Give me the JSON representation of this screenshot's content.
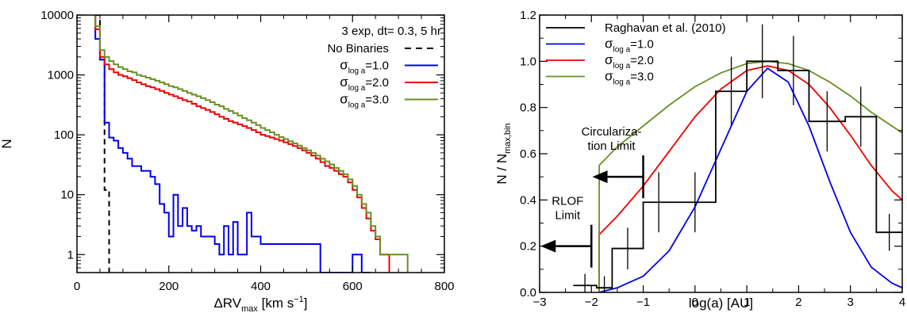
{
  "chart_data": [
    {
      "type": "step",
      "panel": "left",
      "xlabel_main": "ΔRV",
      "xlabel_sub": "max",
      "xlabel_units": " [km s",
      "xlabel_exp": "−1",
      "xlabel_close": "]",
      "ylabel": "N",
      "xlim": [
        0,
        800
      ],
      "ylim": [
        0.5,
        10000
      ],
      "yscale": "log",
      "xticks": [
        0,
        200,
        400,
        600,
        800
      ],
      "xtick_labels": [
        "0",
        "200",
        "400",
        "600",
        "800"
      ],
      "yticks": [
        1,
        10,
        100,
        1000,
        10000
      ],
      "ytick_labels": [
        "1",
        "10",
        "100",
        "1000",
        "10000"
      ],
      "legend_title": "3 exp, dt= 0.3, 5 hr",
      "legend_position": "top-right",
      "bin_width": 10,
      "series": [
        {
          "name": "No Binaries",
          "sigma_sub": "",
          "color": "#000000",
          "dash": true,
          "x_start": 40,
          "values": [
            10000,
            1800,
            12
          ]
        },
        {
          "name": "σ log a =1.0",
          "sigma_sub": "log a",
          "sigma_val": "=1.0",
          "color": "#0000ee",
          "dash": false,
          "x_start": 40,
          "values": [
            4000,
            1800,
            160,
            90,
            80,
            60,
            50,
            40,
            30,
            30,
            25,
            25,
            20,
            15,
            7,
            5,
            2,
            10,
            3,
            6,
            3,
            2.5,
            3,
            2,
            2,
            2,
            1.5,
            1,
            3,
            1,
            3.5,
            1,
            1,
            5,
            2,
            2,
            1.5,
            1.5,
            1.5,
            1.5,
            1.5,
            1.5,
            1.5,
            1.5,
            1.5,
            1.5,
            1.5,
            1.5,
            1.5,
            0.5,
            0.5,
            0.5,
            0.5,
            0.5,
            0.5,
            0.5,
            1,
            1,
            0.5,
            0.5
          ]
        },
        {
          "name": "σ log a =2.0",
          "sigma_sub": "log a",
          "sigma_val": "=2.0",
          "color": "#ee0000",
          "dash": false,
          "x_start": 40,
          "values": [
            5800,
            2000,
            1500,
            1250,
            1100,
            1000,
            950,
            880,
            820,
            750,
            700,
            650,
            620,
            580,
            540,
            500,
            470,
            440,
            410,
            380,
            360,
            330,
            300,
            280,
            260,
            240,
            220,
            200,
            185,
            170,
            160,
            150,
            140,
            130,
            120,
            110,
            100,
            95,
            90,
            85,
            80,
            75,
            70,
            65,
            60,
            55,
            50,
            45,
            40,
            35,
            30,
            28,
            25,
            22,
            20,
            16,
            12,
            9,
            6,
            4,
            2.5,
            1.8,
            1,
            1
          ]
        },
        {
          "name": "σ log a =3.0",
          "sigma_sub": "log a",
          "sigma_val": "=3.0",
          "color": "#6b8e23",
          "dash": false,
          "x_start": 40,
          "values": [
            6500,
            2600,
            2000,
            1700,
            1500,
            1350,
            1250,
            1150,
            1100,
            1000,
            950,
            900,
            850,
            800,
            750,
            700,
            650,
            620,
            580,
            540,
            500,
            470,
            440,
            410,
            380,
            350,
            320,
            300,
            270,
            250,
            230,
            210,
            190,
            175,
            160,
            145,
            130,
            120,
            110,
            100,
            92,
            85,
            78,
            72,
            66,
            60,
            55,
            50,
            45,
            40,
            36,
            32,
            28,
            25,
            22,
            18,
            14,
            10,
            7,
            5,
            3,
            2,
            1,
            1,
            1,
            1,
            1,
            1
          ]
        }
      ]
    },
    {
      "type": "line",
      "panel": "right",
      "xlabel": "log(a) [AU]",
      "ylabel_main": "N / N",
      "ylabel_sub": "max,bin",
      "xlim": [
        -3,
        4
      ],
      "ylim": [
        0,
        1.2
      ],
      "xticks": [
        -3,
        -2,
        -1,
        0,
        1,
        2,
        3,
        4
      ],
      "xtick_labels": [
        "−3",
        "−2",
        "−1",
        "0",
        "1",
        "2",
        "3",
        "4"
      ],
      "yticks": [
        0,
        0.2,
        0.4,
        0.6,
        0.8,
        1.0,
        1.2
      ],
      "ytick_labels": [
        "0.0",
        "0.2",
        "0.4",
        "0.6",
        "0.8",
        "1.0",
        "1.2"
      ],
      "legend_position": "top-left",
      "annotations": [
        {
          "lines": [
            "Circulariza-",
            "tion Limit"
          ],
          "x": -1,
          "y": 0.5
        },
        {
          "lines": [
            "RLOF",
            "Limit"
          ],
          "x": -2,
          "y": 0.2
        }
      ],
      "histogram": {
        "name": "Raghavan et al. (2010)",
        "color": "#000000",
        "edges": [
          -2.35,
          -1.9,
          -1.6,
          -1.0,
          -0.4,
          0.4,
          1.0,
          1.6,
          2.2,
          2.9,
          3.5,
          4.0
        ],
        "values": [
          0.03,
          0.02,
          0.19,
          0.39,
          0.39,
          0.87,
          1.0,
          0.96,
          0.74,
          0.76,
          0.26
        ],
        "errors": [
          0.05,
          0.05,
          0.09,
          0.13,
          0.13,
          0.15,
          0.16,
          0.15,
          0.13,
          0.13,
          0.08
        ]
      },
      "series": [
        {
          "name": "σ log a =1.0",
          "sigma_sub": "log a",
          "sigma_val": "=1.0",
          "color": "#0000ee",
          "x": [
            -1.85,
            -1.5,
            -1.0,
            -0.5,
            0.0,
            0.5,
            1.0,
            1.4,
            1.8,
            2.2,
            2.6,
            3.0,
            3.4,
            3.8,
            4.0
          ],
          "values": [
            0.0,
            0.02,
            0.07,
            0.18,
            0.37,
            0.62,
            0.87,
            0.97,
            0.91,
            0.72,
            0.48,
            0.26,
            0.11,
            0.04,
            0.02
          ]
        },
        {
          "name": "σ log a =2.0",
          "sigma_sub": "log a",
          "sigma_val": "=2.0",
          "color": "#ee0000",
          "x": [
            -1.85,
            -1.5,
            -1.0,
            -0.5,
            0.0,
            0.5,
            1.0,
            1.4,
            1.8,
            2.2,
            2.6,
            3.0,
            3.4,
            3.8,
            4.0
          ],
          "values": [
            0.25,
            0.33,
            0.46,
            0.61,
            0.76,
            0.88,
            0.96,
            0.98,
            0.96,
            0.9,
            0.8,
            0.68,
            0.55,
            0.44,
            0.4
          ]
        },
        {
          "name": "σ log a =3.0",
          "sigma_sub": "log a",
          "sigma_val": "=3.0",
          "color": "#6b8e23",
          "x": [
            -1.85,
            -1.5,
            -1.0,
            -0.5,
            0.0,
            0.5,
            1.0,
            1.4,
            1.8,
            2.2,
            2.6,
            3.0,
            3.4,
            3.8,
            4.0
          ],
          "values": [
            0.55,
            0.63,
            0.72,
            0.81,
            0.89,
            0.95,
            0.99,
            1.0,
            0.99,
            0.96,
            0.91,
            0.85,
            0.78,
            0.72,
            0.69
          ]
        }
      ]
    }
  ]
}
